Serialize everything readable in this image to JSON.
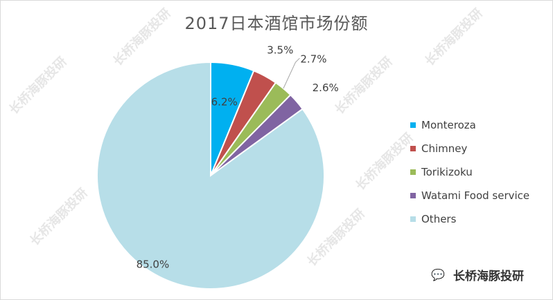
{
  "chart_data": {
    "type": "pie",
    "title": "2017日本酒馆市场份额",
    "categories": [
      "Monteroza",
      "Chimney",
      "Torikizoku",
      "Watami Food service",
      "Others"
    ],
    "values": [
      6.2,
      3.5,
      2.7,
      2.6,
      85.0
    ],
    "data_labels": [
      "6.2%",
      "3.5%",
      "2.7%",
      "2.6%",
      "85.0%"
    ],
    "colors": [
      "#00B0F0",
      "#C0504D",
      "#9BBB59",
      "#8064A2",
      "#B7DEE8"
    ],
    "legend_position": "right"
  },
  "legend": [
    {
      "label": "Monteroza",
      "color": "#00B0F0"
    },
    {
      "label": "Chimney",
      "color": "#C0504D"
    },
    {
      "label": "Torikizoku",
      "color": "#9BBB59"
    },
    {
      "label": "Watami Food service",
      "color": "#8064A2"
    },
    {
      "label": "Others",
      "color": "#B7DEE8"
    }
  ],
  "watermark": {
    "text": "长桥海豚投研",
    "icon": "wechat-icon"
  }
}
